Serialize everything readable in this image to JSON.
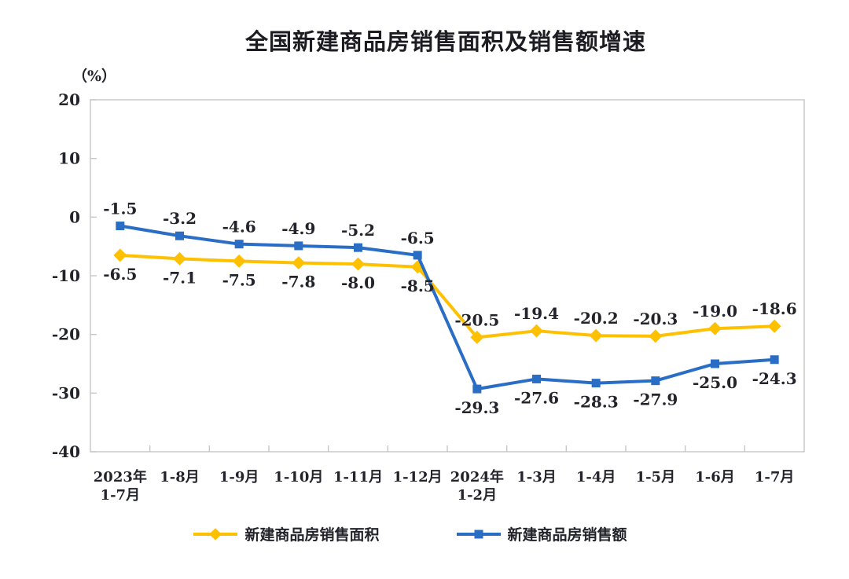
{
  "title": "全国新建商品房销售面积及销售额增速",
  "chart_data": {
    "type": "line",
    "title": "全国新建商品房销售面积及销售额增速",
    "unit_label": "（%）",
    "categories": [
      "2023年\n1-7月",
      "1-8月",
      "1-9月",
      "1-10月",
      "1-11月",
      "1-12月",
      "2024年\n1-2月",
      "1-3月",
      "1-4月",
      "1-5月",
      "1-6月",
      "1-7月"
    ],
    "series": [
      {
        "name": "新建商品房销售面积",
        "color": "#FFC000",
        "marker": "diamond",
        "values": [
          -6.5,
          -7.1,
          -7.5,
          -7.8,
          -8.0,
          -8.5,
          -20.5,
          -19.4,
          -20.2,
          -20.3,
          -19.0,
          -18.6
        ]
      },
      {
        "name": "新建商品房销售额",
        "color": "#2A6DC5",
        "marker": "square",
        "values": [
          -1.5,
          -3.2,
          -4.6,
          -4.9,
          -5.2,
          -6.5,
          -29.3,
          -27.6,
          -28.3,
          -27.9,
          -25.0,
          -24.3
        ]
      }
    ],
    "ylim": [
      -40,
      20
    ],
    "yticks": [
      20,
      10,
      0,
      -10,
      -20,
      -30,
      -40
    ],
    "grid": false,
    "legend_position": "bottom",
    "axis_color": "#C6C6C6",
    "text_color": "#23232B",
    "data_label_decimals": 1
  }
}
